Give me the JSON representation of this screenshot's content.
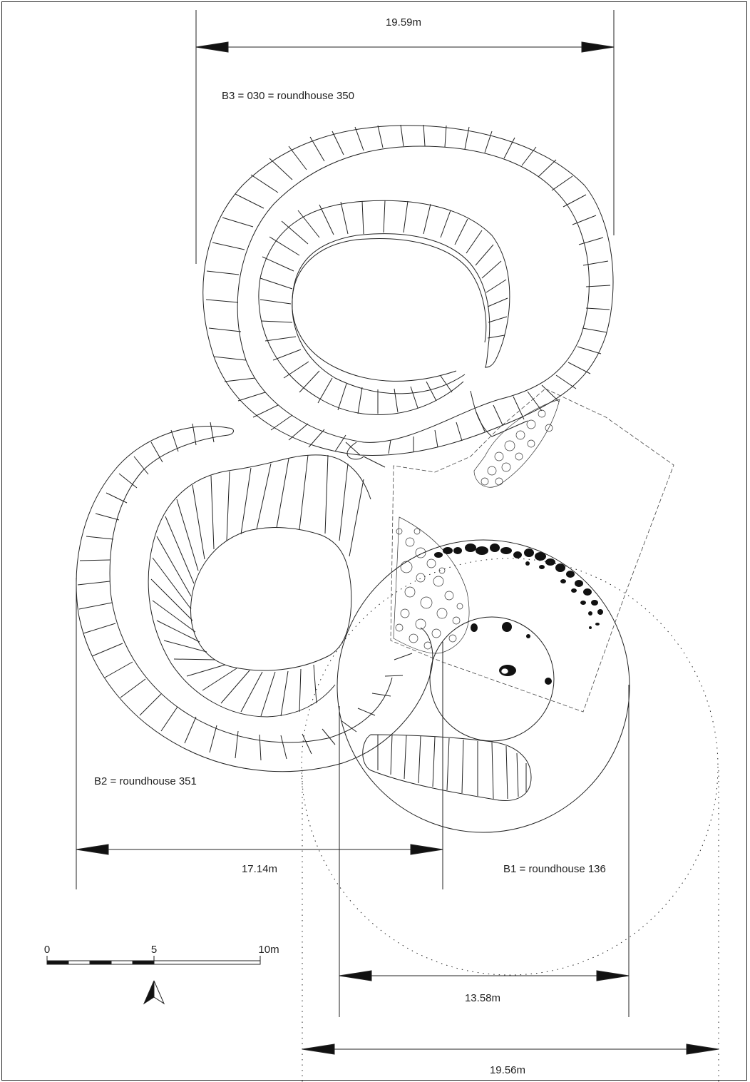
{
  "labels": {
    "b3": "B3 = 030 = roundhouse 350",
    "b2": "B2 = roundhouse 351",
    "b1": "B1 = roundhouse 136"
  },
  "dimensions": {
    "top": "19.59m",
    "b2_width": "17.14m",
    "b1_inner": "13.58m",
    "b1_outer": "19.56m"
  },
  "scale_bar": {
    "start": "0",
    "mid": "5",
    "end": "10m"
  },
  "north_arrow_icon": "north-arrow-icon",
  "colors": {
    "ink": "#222222",
    "paper": "#ffffff"
  }
}
